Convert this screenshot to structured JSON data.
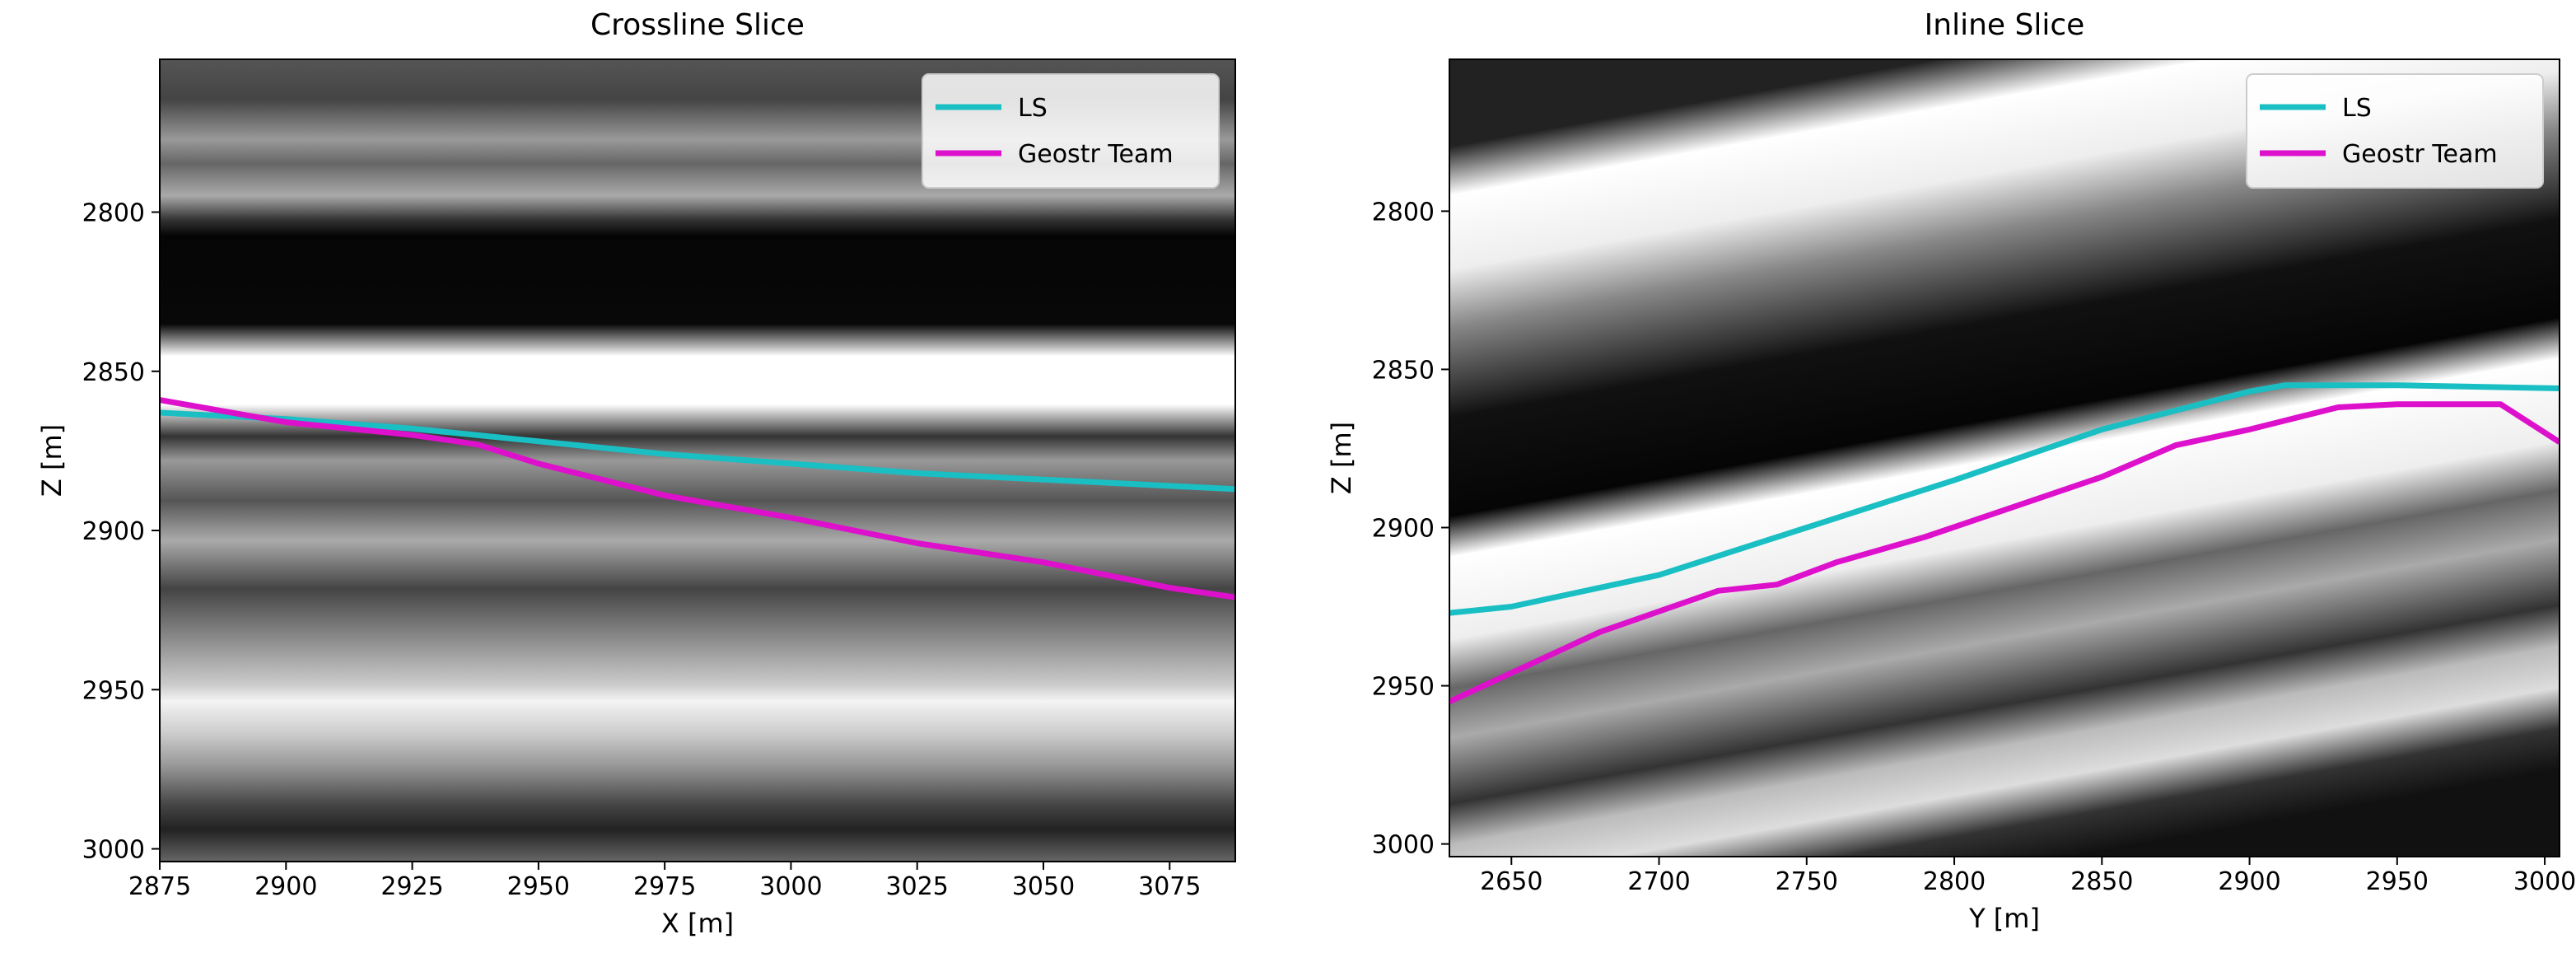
{
  "chart_data": [
    {
      "type": "line",
      "title": "Crossline Slice",
      "xlabel": "X [m]",
      "ylabel": "Z [m]",
      "xlim": [
        2875,
        3088
      ],
      "xticks": [
        2875,
        2900,
        2925,
        2950,
        2975,
        3000,
        3025,
        3050,
        3075
      ],
      "ylim": [
        3004,
        2752
      ],
      "yticks": [
        2800,
        2850,
        2900,
        2950,
        3000
      ],
      "legend": "upper right",
      "series": [
        {
          "name": "LS",
          "color": "#1abfc4",
          "x": [
            2875,
            2900,
            2925,
            2950,
            2975,
            3000,
            3025,
            3050,
            3075,
            3088
          ],
          "values": [
            2863,
            2865,
            2868,
            2872,
            2876,
            2879,
            2882,
            2884,
            2886,
            2887
          ]
        },
        {
          "name": "Geostr Team",
          "color": "#dd10cc",
          "x": [
            2875,
            2900,
            2925,
            2938,
            2950,
            2975,
            3000,
            3025,
            3050,
            3075,
            3088
          ],
          "values": [
            2859,
            2866,
            2870,
            2873,
            2879,
            2889,
            2896,
            2904,
            2910,
            2918,
            2921
          ]
        }
      ]
    },
    {
      "type": "line",
      "title": "Inline Slice",
      "xlabel": "Y [m]",
      "ylabel": "Z [m]",
      "xlim": [
        2629,
        3005
      ],
      "xticks": [
        2650,
        2700,
        2750,
        2800,
        2850,
        2900,
        2950,
        3000
      ],
      "ylim": [
        3004,
        2752
      ],
      "yticks": [
        2800,
        2850,
        2900,
        2950,
        3000
      ],
      "legend": "upper right",
      "series": [
        {
          "name": "LS",
          "color": "#1abfc4",
          "x": [
            2629,
            2650,
            2700,
            2750,
            2800,
            2850,
            2900,
            2912,
            2950,
            3005
          ],
          "values": [
            2927,
            2925,
            2915,
            2900,
            2885,
            2869,
            2857,
            2855,
            2855,
            2856
          ]
        },
        {
          "name": "Geostr Team",
          "color": "#dd10cc",
          "x": [
            2629,
            2680,
            2720,
            2740,
            2760,
            2790,
            2850,
            2875,
            2900,
            2930,
            2950,
            2985,
            3005
          ],
          "values": [
            2955,
            2933,
            2920,
            2918,
            2911,
            2903,
            2884,
            2874,
            2869,
            2862,
            2861,
            2861,
            2873
          ]
        }
      ]
    }
  ]
}
